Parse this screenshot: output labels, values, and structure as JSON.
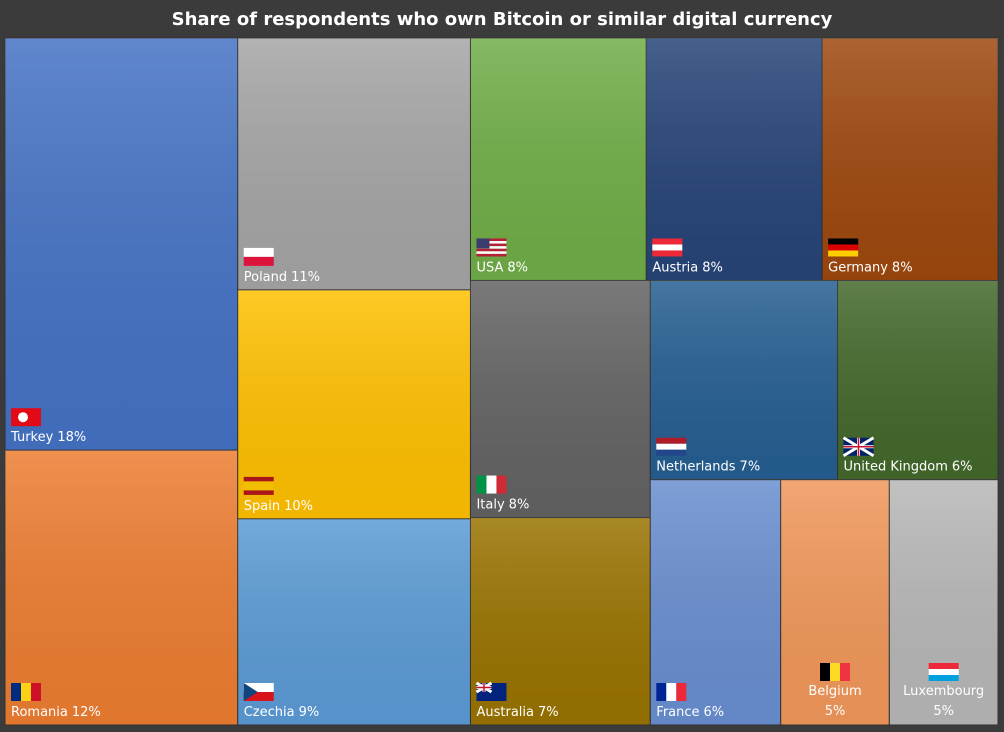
{
  "chart_data": {
    "type": "treemap",
    "title": "Share of respondents who own Bitcoin or similar digital currency",
    "categories": [
      "Turkey",
      "Romania",
      "Poland",
      "Spain",
      "Czechia",
      "USA",
      "Austria",
      "Germany",
      "Italy",
      "Australia",
      "Netherlands",
      "United Kingdom",
      "France",
      "Belgium",
      "Luxembourg"
    ],
    "values": [
      18,
      12,
      11,
      10,
      9,
      8,
      8,
      8,
      8,
      7,
      7,
      6,
      6,
      5,
      5
    ],
    "value_labels": [
      "18%",
      "12%",
      "11%",
      "10%",
      "9%",
      "8%",
      "8%",
      "8%",
      "8%",
      "7%",
      "7%",
      "6%",
      "6%",
      "5%",
      "5%"
    ],
    "colors": [
      "#4472c4",
      "#ed7d31",
      "#a5a5a5",
      "#ffc000",
      "#5b9bd5",
      "#70ad47",
      "#264478",
      "#9e480e",
      "#636363",
      "#997300",
      "#255e91",
      "#43682b",
      "#698ed0",
      "#f1975a",
      "#b7b7b7"
    ]
  }
}
